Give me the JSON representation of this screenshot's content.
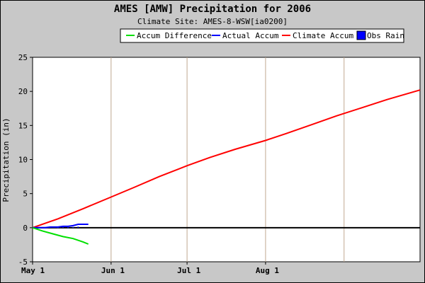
{
  "chart_data": {
    "type": "line",
    "title": "AMES [AMW] Precipitation for 2006",
    "subtitle": "Climate Site: AMES-8-WSW[ia0200]",
    "ylabel": "Precipitation (in)",
    "xlabel": "",
    "ylim": [
      -5,
      25
    ],
    "yticks": [
      -5,
      0,
      5,
      10,
      15,
      20,
      25
    ],
    "xlim": [
      0,
      153
    ],
    "xticks": [
      {
        "x": 0,
        "label": "May 1"
      },
      {
        "x": 31,
        "label": "Jun 1"
      },
      {
        "x": 61,
        "label": "Jul 1"
      },
      {
        "x": 92,
        "label": "Aug 1"
      }
    ],
    "grid_x": [
      31,
      61,
      92,
      123
    ],
    "legend": {
      "position": "top-right",
      "entries": [
        {
          "label": "Accum Difference",
          "color": "#00e000",
          "style": "line"
        },
        {
          "label": "Actual Accum",
          "color": "#0000ff",
          "style": "line"
        },
        {
          "label": "Climate Accum",
          "color": "#ff0000",
          "style": "line"
        },
        {
          "label": "Obs Rain",
          "color": "#0000ff",
          "style": "box"
        }
      ]
    },
    "series": [
      {
        "name": "Climate Accum",
        "color": "#ff0000",
        "x": [
          0,
          10,
          20,
          31,
          40,
          50,
          61,
          70,
          80,
          92,
          100,
          110,
          120,
          130,
          140,
          153
        ],
        "y": [
          0,
          1.3,
          2.8,
          4.5,
          5.9,
          7.5,
          9.1,
          10.3,
          11.5,
          12.8,
          13.8,
          15.1,
          16.4,
          17.6,
          18.8,
          20.2
        ]
      },
      {
        "name": "Actual Accum",
        "color": "#0000ff",
        "x": [
          0,
          5,
          7,
          10,
          12,
          14,
          16,
          18,
          22
        ],
        "y": [
          0,
          0,
          0.1,
          0.1,
          0.2,
          0.2,
          0.3,
          0.5,
          0.5
        ]
      },
      {
        "name": "Accum Difference",
        "color": "#00e000",
        "x": [
          0,
          4,
          8,
          12,
          16,
          20,
          22
        ],
        "y": [
          0,
          -0.5,
          -0.9,
          -1.3,
          -1.6,
          -2.1,
          -2.4
        ]
      }
    ],
    "obs_rain": {
      "name": "Obs Rain",
      "color": "#0000ff",
      "x": [
        7,
        10,
        12,
        14,
        16,
        18
      ],
      "y": [
        0.1,
        0.05,
        0.1,
        0.05,
        0.1,
        0.15
      ]
    },
    "zero_line": {
      "y": 0,
      "color": "#000000"
    },
    "grid_color": "#c0a890"
  }
}
